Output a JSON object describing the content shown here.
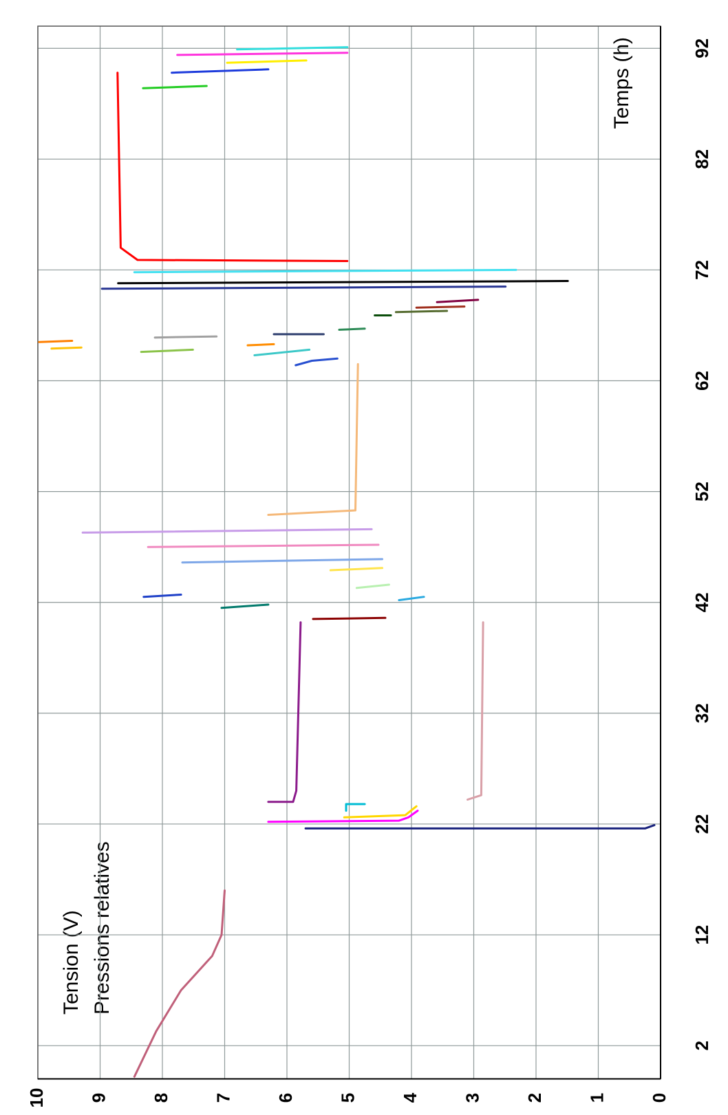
{
  "chart_data": {
    "type": "line",
    "xlabel": "Temps (h)",
    "ylabel": "Tension (V)",
    "ylabel2": "Pressions relatives",
    "xlim": [
      -1,
      94
    ],
    "xticks": [
      2,
      12,
      22,
      32,
      42,
      52,
      62,
      72,
      82,
      92
    ],
    "ylim": [
      0,
      10
    ],
    "yticks": [
      0,
      1,
      2,
      3,
      4,
      5,
      6,
      7,
      8,
      9,
      10
    ],
    "grid": true,
    "series": [
      {
        "color": "#c0607a",
        "x": [
          -0.8,
          3.3,
          7.0,
          10.1,
          12.0,
          16.0
        ],
        "values": [
          8.45,
          8.1,
          7.7,
          7.2,
          7.05,
          7.0
        ]
      },
      {
        "color": "#1a237e",
        "x": [
          21.6,
          21.6,
          21.9
        ],
        "values": [
          5.7,
          0.25,
          0.1
        ]
      },
      {
        "color": "#ff00ff",
        "x": [
          22.2,
          22.3,
          22.6,
          23.2
        ],
        "values": [
          6.3,
          4.2,
          4.05,
          3.9
        ]
      },
      {
        "color": "#ffd700",
        "x": [
          22.6,
          22.8,
          23.6
        ],
        "values": [
          5.08,
          4.1,
          3.92
        ]
      },
      {
        "color": "#00bcd4",
        "x": [
          23.2,
          23.8,
          23.8
        ],
        "values": [
          5.05,
          5.05,
          4.75
        ]
      },
      {
        "color": "#8b1a8b",
        "x": [
          24,
          24,
          25,
          40.2
        ],
        "values": [
          6.3,
          5.9,
          5.85,
          5.78
        ]
      },
      {
        "color": "#d9a0a8",
        "x": [
          24.2,
          24.6,
          40.2
        ],
        "values": [
          3.1,
          2.88,
          2.85
        ]
      },
      {
        "color": "#8b0000",
        "x": [
          40.5,
          40.6
        ],
        "values": [
          5.58,
          4.42
        ]
      },
      {
        "color": "#00796b",
        "x": [
          41.5,
          41.8
        ],
        "values": [
          7.05,
          6.3
        ]
      },
      {
        "color": "#1e40c8",
        "x": [
          42.5,
          42.7
        ],
        "values": [
          8.3,
          7.7
        ]
      },
      {
        "color": "#29a9e0",
        "x": [
          42.2,
          42.5
        ],
        "values": [
          4.2,
          3.8
        ]
      },
      {
        "color": "#b8f0b0",
        "x": [
          43.3,
          43.6
        ],
        "values": [
          4.88,
          4.36
        ]
      },
      {
        "color": "#ffe44d",
        "x": [
          44.9,
          45.1
        ],
        "values": [
          5.3,
          4.47
        ]
      },
      {
        "color": "#7ea7e8",
        "x": [
          45.6,
          45.9
        ],
        "values": [
          7.68,
          4.47
        ]
      },
      {
        "color": "#f08ac0",
        "x": [
          47.0,
          47.2
        ],
        "values": [
          8.23,
          4.53
        ]
      },
      {
        "color": "#c79be8",
        "x": [
          48.3,
          48.6
        ],
        "values": [
          9.28,
          4.64
        ]
      },
      {
        "color": "#f5b97a",
        "x": [
          49.9,
          50.3,
          63.5
        ],
        "values": [
          6.3,
          4.9,
          4.86
        ]
      },
      {
        "color": "#2850d0",
        "x": [
          63.4,
          63.8,
          64.0
        ],
        "values": [
          5.86,
          5.6,
          5.19
        ]
      },
      {
        "color": "#3cc8c8",
        "x": [
          64.3,
          64.8
        ],
        "values": [
          6.52,
          5.64
        ]
      },
      {
        "color": "#8bc34a",
        "x": [
          64.6,
          64.8
        ],
        "values": [
          8.34,
          7.51
        ]
      },
      {
        "color": "#ffc107",
        "x": [
          64.9,
          65.0
        ],
        "values": [
          9.78,
          9.3
        ]
      },
      {
        "color": "#ff7f00",
        "x": [
          65.5,
          65.6
        ],
        "values": [
          9.98,
          9.45
        ]
      },
      {
        "color": "#ff8c00",
        "x": [
          65.2,
          65.3
        ],
        "values": [
          6.63,
          6.21
        ]
      },
      {
        "color": "#2f3f6f",
        "x": [
          66.2,
          66.2
        ],
        "values": [
          6.21,
          5.41
        ]
      },
      {
        "color": "#a0a0a0",
        "x": [
          65.9,
          66.0
        ],
        "values": [
          8.12,
          7.13
        ]
      },
      {
        "color": "#2e8b57",
        "x": [
          66.6,
          66.7
        ],
        "values": [
          5.16,
          4.75
        ]
      },
      {
        "color": "#0b4d0b",
        "x": [
          67.9,
          67.9
        ],
        "values": [
          4.59,
          4.33
        ]
      },
      {
        "color": "#556b2f",
        "x": [
          68.2,
          68.3
        ],
        "values": [
          4.25,
          3.43
        ]
      },
      {
        "color": "#a0301e",
        "x": [
          68.6,
          68.7
        ],
        "values": [
          3.92,
          3.15
        ]
      },
      {
        "color": "#800040",
        "x": [
          69.1,
          69.3
        ],
        "values": [
          3.59,
          2.93
        ]
      },
      {
        "color": "#283593",
        "x": [
          70.3,
          70.5
        ],
        "values": [
          8.97,
          2.49
        ]
      },
      {
        "color": "#000000",
        "x": [
          70.8,
          71.0
        ],
        "values": [
          8.71,
          1.49
        ]
      },
      {
        "color": "#40e0f0",
        "x": [
          71.8,
          72.0
        ],
        "values": [
          8.45,
          2.32
        ]
      },
      {
        "color": "#ff0000",
        "x": [
          72.8,
          72.9,
          74,
          89.8
        ],
        "values": [
          5.03,
          8.4,
          8.67,
          8.72
        ]
      },
      {
        "color": "#22cc22",
        "x": [
          88.4,
          88.6
        ],
        "values": [
          8.31,
          7.29
        ]
      },
      {
        "color": "#1e3cdc",
        "x": [
          89.8,
          90.1
        ],
        "values": [
          7.85,
          6.3
        ]
      },
      {
        "color": "#ffee00",
        "x": [
          90.7,
          90.9
        ],
        "values": [
          6.96,
          5.69
        ]
      },
      {
        "color": "#ff33dd",
        "x": [
          91.4,
          91.6
        ],
        "values": [
          7.76,
          5.03
        ]
      },
      {
        "color": "#33dddd",
        "x": [
          91.9,
          92.1
        ],
        "values": [
          6.8,
          5.03
        ]
      }
    ]
  }
}
